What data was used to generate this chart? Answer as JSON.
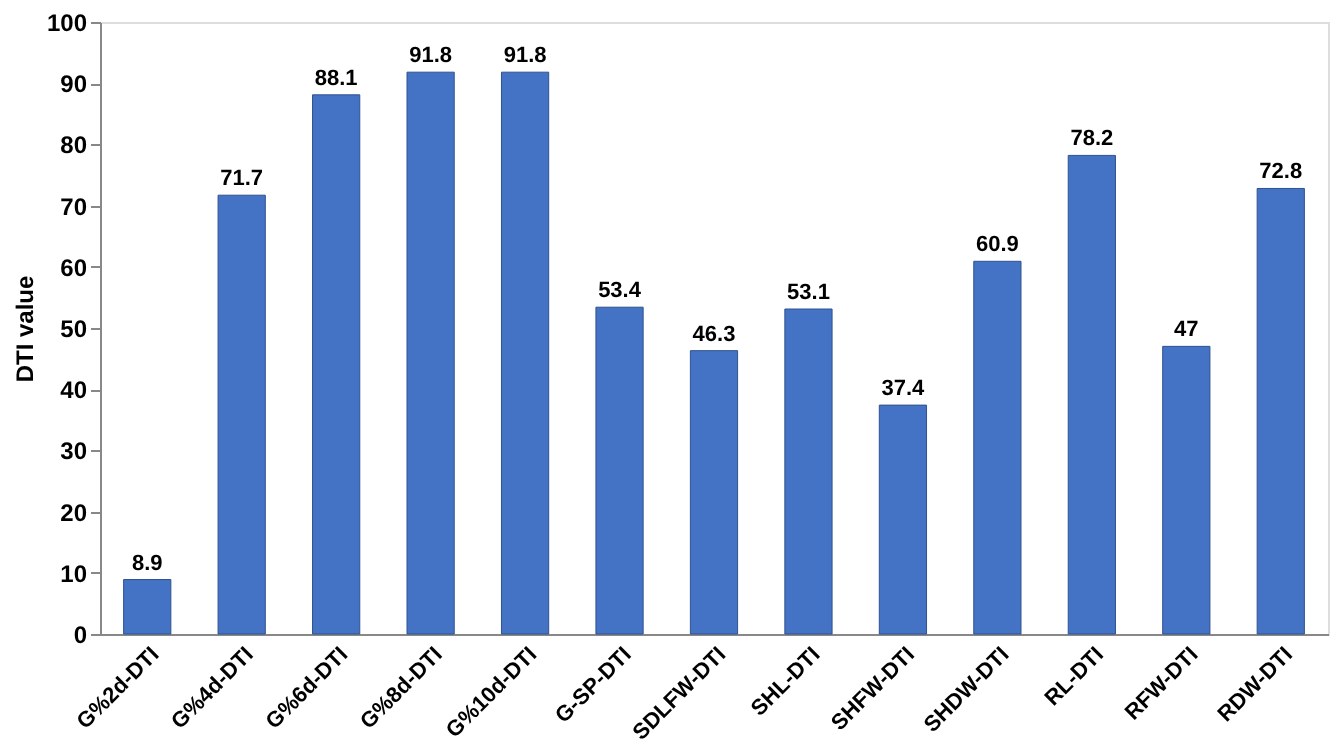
{
  "chart_data": {
    "type": "bar",
    "ylabel": "DTI value",
    "categories": [
      "G%2d-DTI",
      "G%4d-DTI",
      "G%6d-DTI",
      "G%8d-DTI",
      "G%10d-DTI",
      "G-SP-DTI",
      "SDLFW-DTI",
      "SHL-DTI",
      "SHFW-DTI",
      "SHDW-DTI",
      "RL-DTI",
      "RFW-DTI",
      "RDW-DTI"
    ],
    "values": [
      8.9,
      71.7,
      88.1,
      91.8,
      91.8,
      53.4,
      46.3,
      53.1,
      37.4,
      60.9,
      78.2,
      47,
      72.8
    ],
    "color": "#4472c4",
    "ylim": [
      0,
      100
    ],
    "yticks": [
      0,
      10,
      20,
      30,
      40,
      50,
      60,
      70,
      80,
      90,
      100
    ],
    "grid": false,
    "data_labels": true
  }
}
